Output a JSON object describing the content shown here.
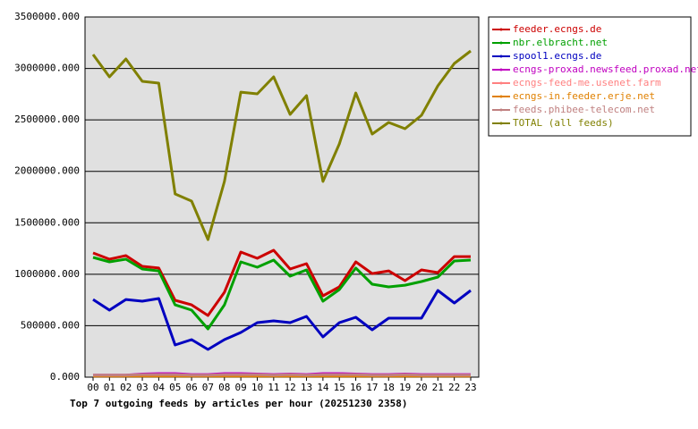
{
  "chart_data": {
    "type": "line",
    "title": "Top 7 outgoing feeds by articles per hour (20251230 2358)",
    "categories": [
      "00",
      "01",
      "02",
      "03",
      "04",
      "05",
      "06",
      "07",
      "08",
      "09",
      "10",
      "11",
      "12",
      "13",
      "14",
      "15",
      "16",
      "17",
      "18",
      "19",
      "20",
      "21",
      "22",
      "23"
    ],
    "ylim": [
      0,
      3500000
    ],
    "yticks": [
      {
        "value": 0,
        "label": "0.000"
      },
      {
        "value": 500000,
        "label": "500000.000"
      },
      {
        "value": 1000000,
        "label": "1000000.000"
      },
      {
        "value": 1500000,
        "label": "1500000.000"
      },
      {
        "value": 2000000,
        "label": "2000000.000"
      },
      {
        "value": 2500000,
        "label": "2500000.000"
      },
      {
        "value": 3000000,
        "label": "3000000.000"
      },
      {
        "value": 3500000,
        "label": "3500000.000"
      }
    ],
    "grid": true,
    "legend": "right",
    "series": [
      {
        "name": "feeder.ecngs.de",
        "color": "#cc0000",
        "values": [
          1207000,
          1146000,
          1181000,
          1077000,
          1060000,
          747000,
          703000,
          599000,
          825000,
          1216000,
          1155000,
          1233000,
          1051000,
          1103000,
          790000,
          877000,
          1120000,
          1007000,
          1033000,
          938000,
          1042000,
          1016000,
          1172000,
          1172000
        ]
      },
      {
        "name": "nbr.elbracht.net",
        "color": "#00a000",
        "values": [
          1164000,
          1120000,
          1146000,
          1051000,
          1033000,
          703000,
          651000,
          469000,
          703000,
          1120000,
          1068000,
          1138000,
          981000,
          1042000,
          738000,
          851000,
          1060000,
          903000,
          877000,
          894000,
          929000,
          973000,
          1129000,
          1138000
        ]
      },
      {
        "name": "spool1.ecngs.de",
        "color": "#0000c0",
        "values": [
          755000,
          651000,
          755000,
          738000,
          764000,
          313000,
          365000,
          269000,
          365000,
          434000,
          530000,
          547000,
          530000,
          591000,
          391000,
          530000,
          582000,
          460000,
          573000,
          573000,
          573000,
          842000,
          721000,
          842000
        ]
      },
      {
        "name": "ecngs-proxad.newsfeed.proxad.net",
        "color": "#c000c0",
        "values": [
          20000,
          20000,
          20000,
          30000,
          35000,
          35000,
          25000,
          25000,
          35000,
          35000,
          30000,
          25000,
          30000,
          25000,
          35000,
          35000,
          30000,
          25000,
          25000,
          30000,
          25000,
          25000,
          25000,
          25000
        ]
      },
      {
        "name": "ecngs-feed-me.usenet.farm",
        "color": "#ff8080",
        "values": [
          15000,
          15000,
          15000,
          15000,
          15000,
          15000,
          15000,
          15000,
          15000,
          15000,
          15000,
          15000,
          15000,
          15000,
          15000,
          15000,
          15000,
          15000,
          15000,
          15000,
          15000,
          15000,
          15000,
          15000
        ]
      },
      {
        "name": "ecngs-in.feeder.erje.net",
        "color": "#e08000",
        "values": [
          10000,
          10000,
          10000,
          10000,
          10000,
          10000,
          10000,
          10000,
          10000,
          10000,
          10000,
          10000,
          10000,
          10000,
          10000,
          10000,
          10000,
          10000,
          10000,
          10000,
          10000,
          10000,
          10000,
          10000
        ]
      },
      {
        "name": "feeds.phibee-telecom.net",
        "color": "#c08080",
        "values": [
          20000,
          20000,
          20000,
          25000,
          25000,
          25000,
          20000,
          20000,
          25000,
          25000,
          25000,
          20000,
          25000,
          20000,
          25000,
          25000,
          25000,
          20000,
          20000,
          25000,
          20000,
          20000,
          20000,
          20000
        ]
      },
      {
        "name": "TOTAL (all feeds)",
        "color": "#808000",
        "values": [
          3135000,
          2918000,
          3092000,
          2875000,
          2857000,
          1780000,
          1711000,
          1337000,
          1902000,
          2770000,
          2753000,
          2918000,
          2553000,
          2736000,
          1902000,
          2267000,
          2762000,
          2362000,
          2475000,
          2414000,
          2545000,
          2831000,
          3048000,
          3170000
        ]
      }
    ]
  }
}
